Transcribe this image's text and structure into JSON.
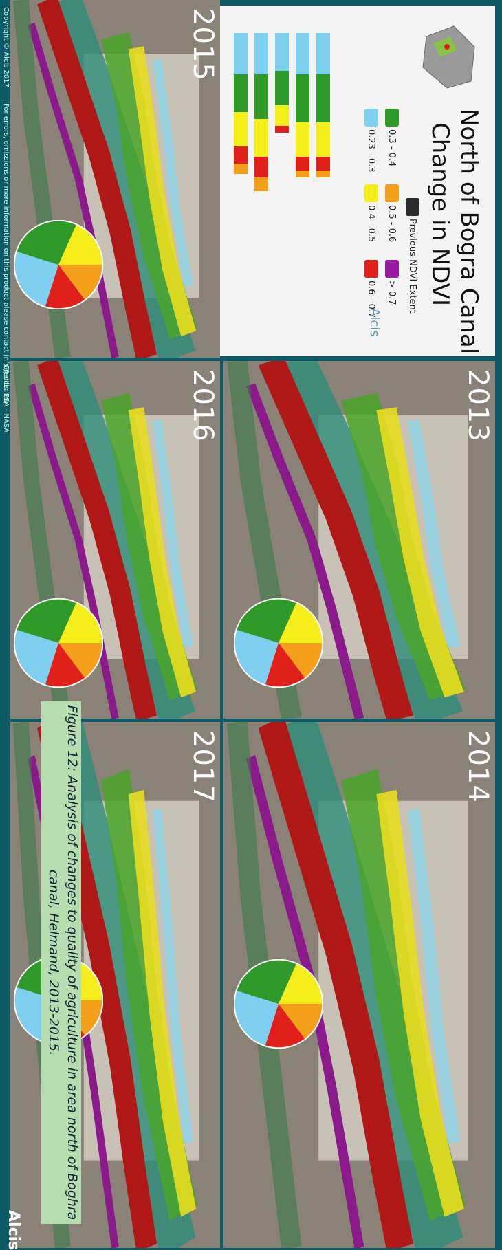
{
  "header": {
    "title_lines": [
      "North of Bogra Canal",
      "Change in NDVI"
    ]
  },
  "legend": {
    "items": [
      {
        "label": "Previous NDVI Extent",
        "color": "#2b2b2b"
      },
      {
        "label": "0.3 - 0.4",
        "color": "#2f9a2a"
      },
      {
        "label": "0.5 - 0.6",
        "color": "#f5a01a"
      },
      {
        "label": "> 0.7",
        "color": "#9a1aa0"
      },
      {
        "label": "0.23 - 0.3",
        "color": "#7fd0f0"
      },
      {
        "label": "0.4 - 0.5",
        "color": "#f5ee1a"
      },
      {
        "label": "0.6 - 0.7",
        "color": "#e0201a"
      }
    ],
    "logo": "Alcis"
  },
  "panels": [
    {
      "year": "2013"
    },
    {
      "year": "2014"
    },
    {
      "year": "2015"
    },
    {
      "year": "2016"
    },
    {
      "year": "2017"
    }
  ],
  "footer": {
    "copyright": "Copyright © Alcis 2017",
    "note": "For errors, omissions or more information on this product please contact info@alcis.org",
    "credits": "Credits: ESA - NASA"
  },
  "caption": "Figure 12: Analysis of changes to quality of agriculture in area north of Boghra canal, Helmand, 2013-2015.",
  "brand": "Alcis"
}
